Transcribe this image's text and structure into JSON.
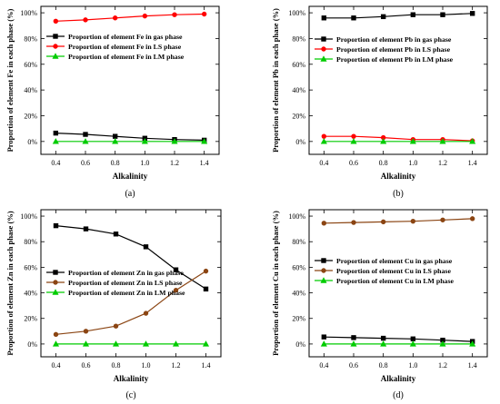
{
  "chart_data": [
    {
      "type": "line",
      "panel_label": "(a)",
      "xlabel": "Alkalinity",
      "ylabel": "Proportion of element Fe in each phase (%)",
      "x": [
        0.4,
        0.6,
        0.8,
        1.0,
        1.2,
        1.4
      ],
      "xticks": [
        "0.4",
        "0.6",
        "0.8",
        "1.0",
        "1.2",
        "1.4"
      ],
      "xlim": [
        0.3,
        1.5
      ],
      "ylim": [
        -10,
        105
      ],
      "yticks": [
        "0%",
        "20%",
        "40%",
        "60%",
        "80%",
        "100%"
      ],
      "legend_position": "upper-left",
      "series": [
        {
          "name": "Proportion of element Fe in gas phase",
          "color": "#000000",
          "marker": "square",
          "values": [
            6.5,
            5.5,
            4.0,
            2.5,
            1.5,
            1.0
          ]
        },
        {
          "name": "Proportion of element Fe in LS phase",
          "color": "#ff0000",
          "marker": "circle",
          "values": [
            93.5,
            94.5,
            96.0,
            97.5,
            98.5,
            99.0
          ]
        },
        {
          "name": "Proportion of element Fe in LM phase",
          "color": "#00cc00",
          "marker": "triangle",
          "values": [
            0,
            0,
            0,
            0,
            0,
            0
          ]
        }
      ]
    },
    {
      "type": "line",
      "panel_label": "(b)",
      "xlabel": "Alkalinity",
      "ylabel": "Proportion of element Pb in each phase (%)",
      "x": [
        0.4,
        0.6,
        0.8,
        1.0,
        1.2,
        1.4
      ],
      "xticks": [
        "0.4",
        "0.6",
        "0.8",
        "1.0",
        "1.2",
        "1.4"
      ],
      "xlim": [
        0.3,
        1.5
      ],
      "ylim": [
        -10,
        105
      ],
      "yticks": [
        "0%",
        "20%",
        "40%",
        "60%",
        "80%",
        "100%"
      ],
      "legend_position": "upper-left",
      "series": [
        {
          "name": "Proportion of element Pb in gas phase",
          "color": "#000000",
          "marker": "square",
          "values": [
            96.0,
            96.0,
            97.0,
            98.5,
            98.5,
            99.5
          ]
        },
        {
          "name": "Proportion of element Pb in LS phase",
          "color": "#ff0000",
          "marker": "circle",
          "values": [
            4.0,
            4.0,
            3.0,
            1.5,
            1.5,
            0.5
          ]
        },
        {
          "name": "Proportion of element Pb in LM phase",
          "color": "#00cc00",
          "marker": "triangle",
          "values": [
            0,
            0,
            0,
            0,
            0,
            0
          ]
        }
      ]
    },
    {
      "type": "line",
      "panel_label": "(c)",
      "xlabel": "Alkalinity",
      "ylabel": "Proportion of element Zn in each phase (%)",
      "x": [
        0.4,
        0.6,
        0.8,
        1.0,
        1.2,
        1.4
      ],
      "xticks": [
        "0.4",
        "0.6",
        "0.8",
        "1.0",
        "1.2",
        "1.4"
      ],
      "xlim": [
        0.3,
        1.5
      ],
      "ylim": [
        -10,
        105
      ],
      "yticks": [
        "0%",
        "20%",
        "40%",
        "60%",
        "80%",
        "100%"
      ],
      "legend_position": "middle-left",
      "series": [
        {
          "name": "Proportion of element Zn in gas phase",
          "color": "#000000",
          "marker": "square",
          "values": [
            92.5,
            90.0,
            86.0,
            76.0,
            58.0,
            43.0
          ]
        },
        {
          "name": "Proportion of element Zn in LS phase",
          "color": "#8b4513",
          "marker": "circle",
          "values": [
            7.5,
            10.0,
            14.0,
            24.0,
            42.0,
            57.0
          ]
        },
        {
          "name": "Proportion of element Zn in LM phase",
          "color": "#00cc00",
          "marker": "triangle",
          "values": [
            0,
            0,
            0,
            0,
            0,
            0
          ]
        }
      ]
    },
    {
      "type": "line",
      "panel_label": "(d)",
      "xlabel": "Alkalinity",
      "ylabel": "Proportion of element Cu in each phase (%)",
      "x": [
        0.4,
        0.6,
        0.8,
        1.0,
        1.2,
        1.4
      ],
      "xticks": [
        "0.4",
        "0.6",
        "0.8",
        "1.0",
        "1.2",
        "1.4"
      ],
      "xlim": [
        0.3,
        1.5
      ],
      "ylim": [
        -10,
        105
      ],
      "yticks": [
        "0%",
        "20%",
        "40%",
        "60%",
        "80%",
        "100%"
      ],
      "legend_position": "middle-left",
      "series": [
        {
          "name": "Proportion of element Cu in gas phase",
          "color": "#000000",
          "marker": "square",
          "values": [
            5.5,
            5.0,
            4.5,
            4.0,
            3.0,
            2.0
          ]
        },
        {
          "name": "Proportion of element Cu in LS phase",
          "color": "#8b4513",
          "marker": "circle",
          "values": [
            94.5,
            95.0,
            95.5,
            96.0,
            97.0,
            98.0
          ]
        },
        {
          "name": "Proportion of element Cu in LM phase",
          "color": "#00cc00",
          "marker": "triangle",
          "values": [
            0,
            0,
            0,
            0,
            0,
            0
          ]
        }
      ]
    }
  ]
}
